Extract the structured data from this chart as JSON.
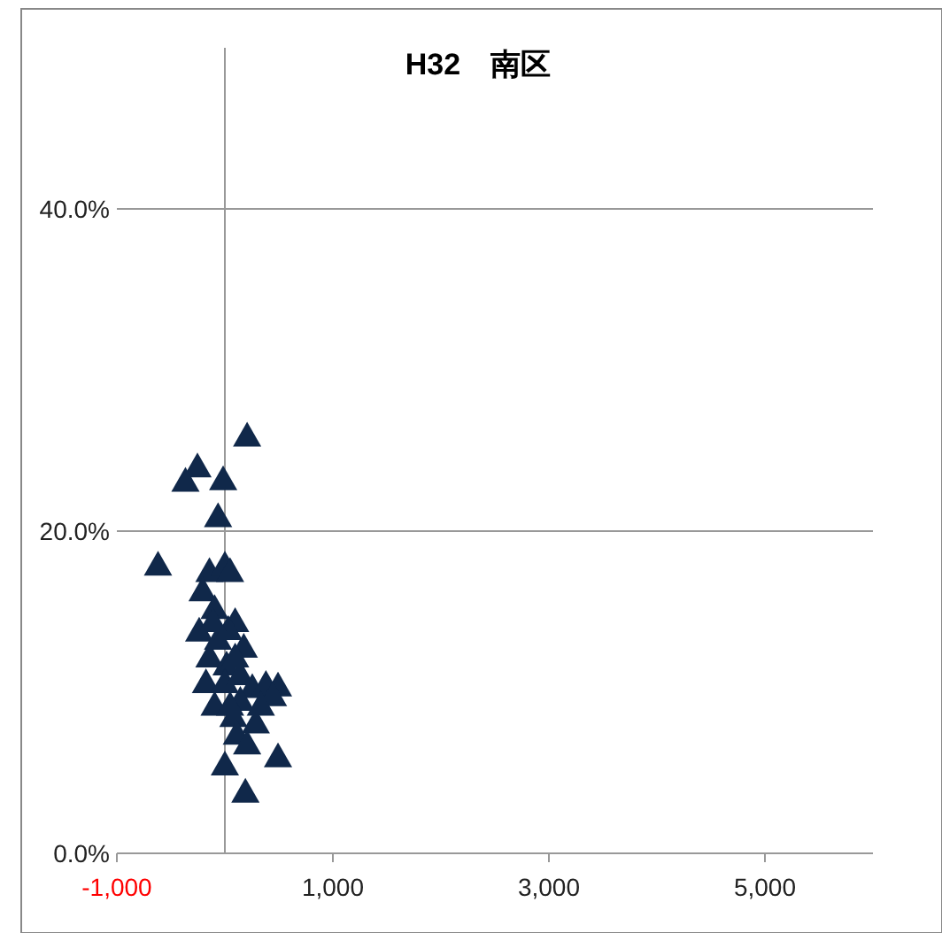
{
  "chart_data": {
    "type": "scatter",
    "title": "H32　南区",
    "marker": "triangle",
    "grid": "y",
    "xlim": [
      -1000,
      6000
    ],
    "xticks": [
      {
        "value": -1000,
        "label": "-1,000"
      },
      {
        "value": 1000,
        "label": "1,000"
      },
      {
        "value": 3000,
        "label": "3,000"
      },
      {
        "value": 5000,
        "label": "5,000"
      }
    ],
    "ylim": [
      0,
      50
    ],
    "yticks": [
      {
        "value": 0,
        "label": "0.0%"
      },
      {
        "value": 20,
        "label": "20.0%"
      },
      {
        "value": 40,
        "label": "40.0%"
      }
    ],
    "series": [
      {
        "color": "#10284a",
        "x": [
          206,
          -254,
          -365,
          -16,
          -63,
          -619,
          -143,
          0,
          48,
          -206,
          -95,
          -238,
          95,
          175,
          -143,
          16,
          -175,
          0,
          254,
          380,
          492,
          445,
          143,
          79,
          286,
          111,
          492,
          206,
          0,
          190,
          -63,
          32,
          143,
          -95,
          48,
          333,
          95,
          -111
        ],
        "values": [
          25.9,
          24.0,
          23.1,
          23.2,
          20.9,
          17.9,
          17.5,
          17.9,
          17.5,
          16.3,
          15.2,
          13.8,
          14.4,
          12.8,
          12.2,
          11.7,
          10.6,
          10.6,
          10.3,
          10.5,
          10.4,
          9.8,
          9.5,
          8.5,
          8.1,
          7.4,
          6.0,
          6.8,
          5.5,
          3.8,
          13.3,
          13.9,
          11.1,
          9.2,
          9.2,
          9.2,
          12.2,
          14.4
        ]
      }
    ]
  }
}
